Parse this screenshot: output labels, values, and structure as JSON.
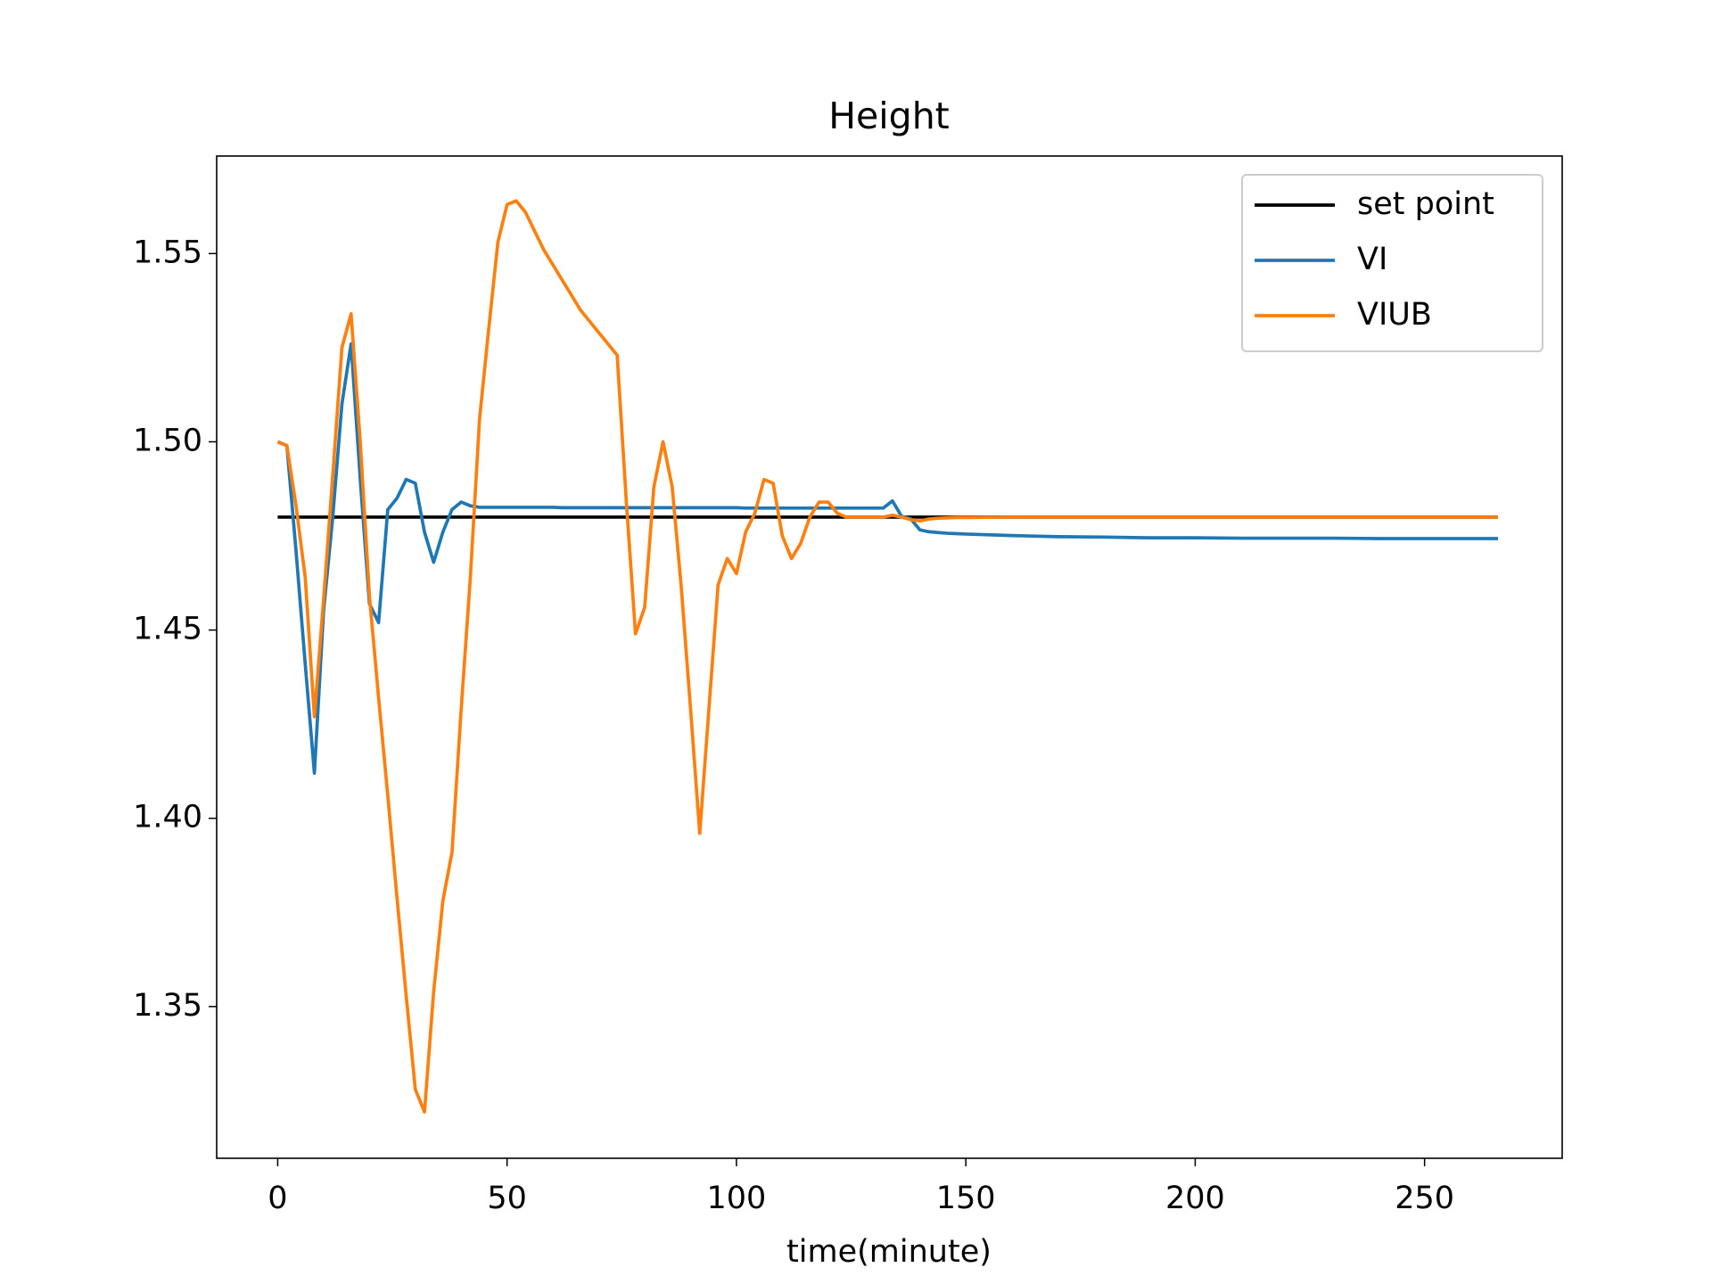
{
  "chart_data": {
    "type": "line",
    "title": "Height",
    "x_label": "time(minute)",
    "x": [
      0,
      2,
      4,
      6,
      8,
      10,
      12,
      14,
      16,
      18,
      20,
      22,
      24,
      26,
      28,
      30,
      32,
      34,
      36,
      38,
      40,
      42,
      44,
      46,
      48,
      50,
      52,
      54,
      56,
      58,
      60,
      62,
      64,
      66,
      68,
      70,
      72,
      74,
      76,
      78,
      80,
      82,
      84,
      86,
      88,
      90,
      92,
      94,
      96,
      98,
      100,
      102,
      104,
      106,
      108,
      110,
      112,
      114,
      116,
      118,
      120,
      122,
      124,
      126,
      128,
      130,
      132,
      134,
      136,
      138,
      140,
      142,
      144,
      146,
      148,
      150,
      160,
      170,
      180,
      190,
      200,
      210,
      220,
      230,
      240,
      250,
      260,
      266
    ],
    "series": [
      {
        "name": "set point",
        "color": "#000000",
        "x": [
          0,
          266
        ],
        "values": [
          1.48,
          1.48
        ]
      },
      {
        "name": "VI",
        "color": "#1f77b4",
        "values": [
          1.5,
          1.499,
          1.471,
          1.441,
          1.412,
          1.455,
          1.48,
          1.51,
          1.526,
          1.49,
          1.457,
          1.452,
          1.482,
          1.485,
          1.49,
          1.489,
          1.476,
          1.468,
          1.476,
          1.482,
          1.484,
          1.483,
          1.4826,
          1.4826,
          1.4826,
          1.4826,
          1.4826,
          1.4826,
          1.4826,
          1.4826,
          1.4826,
          1.4825,
          1.4825,
          1.4825,
          1.4825,
          1.4825,
          1.4825,
          1.4825,
          1.4825,
          1.4825,
          1.4825,
          1.4825,
          1.4825,
          1.4825,
          1.4825,
          1.4825,
          1.4825,
          1.4825,
          1.4825,
          1.4825,
          1.4825,
          1.4824,
          1.4824,
          1.4824,
          1.4824,
          1.4824,
          1.4824,
          1.4824,
          1.4824,
          1.4824,
          1.4824,
          1.4824,
          1.4824,
          1.4824,
          1.4824,
          1.4824,
          1.4824,
          1.4843,
          1.4802,
          1.4795,
          1.4766,
          1.4761,
          1.4759,
          1.4757,
          1.4756,
          1.4755,
          1.4751,
          1.4748,
          1.4747,
          1.4745,
          1.4745,
          1.4744,
          1.4744,
          1.4744,
          1.4743,
          1.4743,
          1.4743,
          1.4743
        ]
      },
      {
        "name": "VIUB",
        "color": "#ff7f0e",
        "values": [
          1.5,
          1.499,
          1.483,
          1.464,
          1.427,
          1.458,
          1.491,
          1.525,
          1.534,
          1.5,
          1.459,
          1.432,
          1.406,
          1.379,
          1.353,
          1.328,
          1.322,
          1.354,
          1.378,
          1.391,
          1.429,
          1.464,
          1.506,
          1.53,
          1.553,
          1.563,
          1.564,
          1.561,
          1.556,
          1.551,
          1.547,
          1.543,
          1.539,
          1.535,
          1.532,
          1.529,
          1.526,
          1.523,
          1.484,
          1.449,
          1.456,
          1.488,
          1.5,
          1.488,
          1.461,
          1.429,
          1.396,
          1.429,
          1.462,
          1.469,
          1.465,
          1.476,
          1.481,
          1.49,
          1.489,
          1.475,
          1.469,
          1.473,
          1.48,
          1.484,
          1.484,
          1.481,
          1.48,
          1.48,
          1.48,
          1.48,
          1.48,
          1.4805,
          1.48,
          1.4793,
          1.479,
          1.4795,
          1.4797,
          1.4798,
          1.4799,
          1.4799,
          1.48,
          1.48,
          1.48,
          1.48,
          1.48,
          1.48,
          1.48,
          1.48,
          1.48,
          1.48,
          1.48,
          1.48
        ]
      }
    ],
    "xlim": [
      -13.3,
      280
    ],
    "xticks": [
      0,
      50,
      100,
      150,
      200,
      250
    ],
    "ylim": [
      1.3097,
      1.5759
    ],
    "yticks": [
      1.35,
      {
        "value": 1.4,
        "label": "1.40"
      },
      1.45,
      {
        "value": 1.5,
        "label": "1.50"
      },
      1.55
    ],
    "legend": "upper right"
  }
}
